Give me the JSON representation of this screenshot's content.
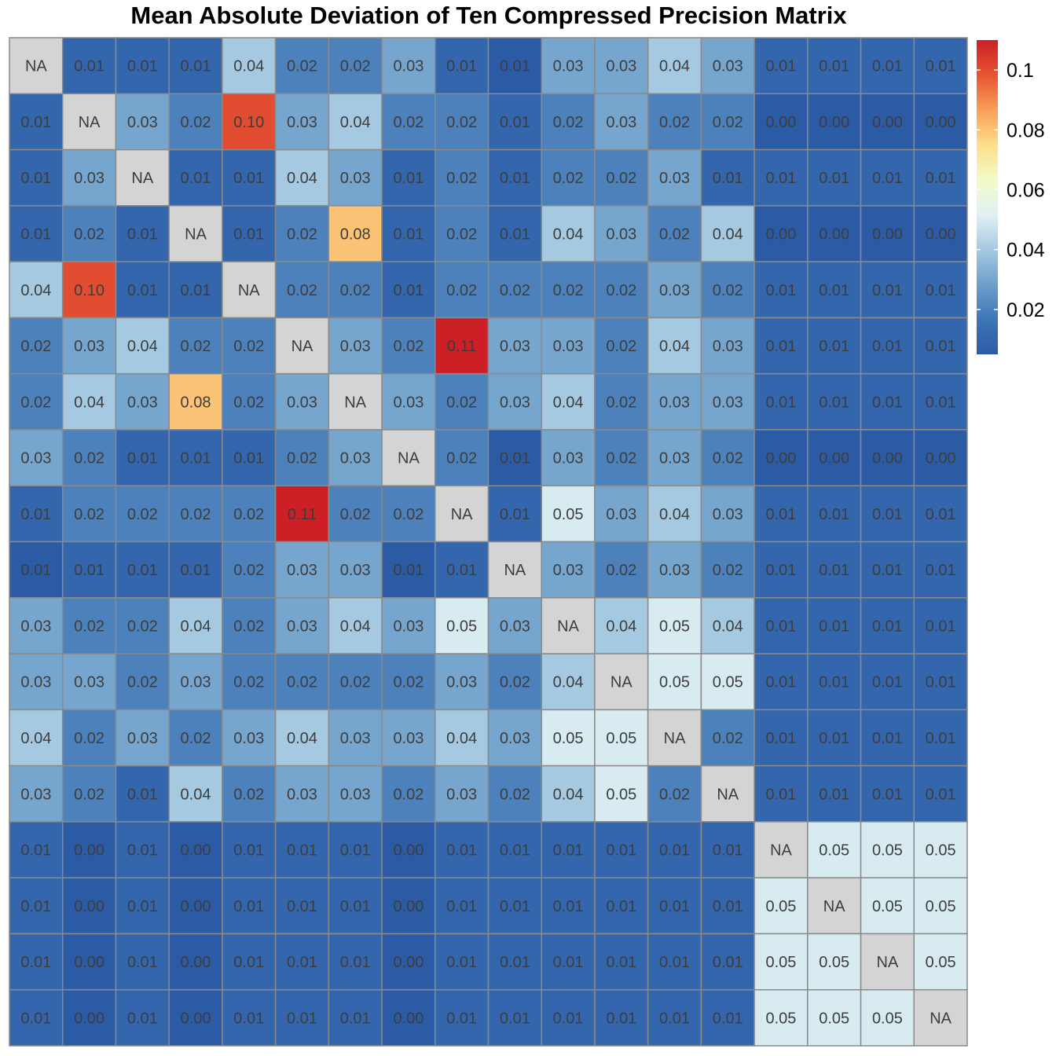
{
  "chart_data": {
    "type": "heatmap",
    "title": "Mean Absolute Deviation of Ten Compressed Precision Matrix",
    "na_label": "NA",
    "color_scale": {
      "min": 0.005,
      "max": 0.11,
      "colors": [
        "#2c5ba6",
        "#3e75b6",
        "#6e9fcb",
        "#a4c9e1",
        "#e1f1f4",
        "#f2fac8",
        "#fdde8a",
        "#f99f58",
        "#e65432",
        "#cc1f26"
      ],
      "na_color": "#d4d4d4",
      "ticks": [
        0.02,
        0.04,
        0.06,
        0.08,
        0.1
      ],
      "tick_labels": [
        "0.02",
        "0.04",
        "0.06",
        "0.08",
        "0.1"
      ]
    },
    "matrix": [
      [
        null,
        0.01,
        0.01,
        0.01,
        0.04,
        0.02,
        0.02,
        0.03,
        0.01,
        0.005,
        0.03,
        0.03,
        0.04,
        0.03,
        0.01,
        0.01,
        0.01,
        0.01
      ],
      [
        0.01,
        null,
        0.03,
        0.02,
        0.1,
        0.03,
        0.04,
        0.02,
        0.02,
        0.01,
        0.02,
        0.03,
        0.02,
        0.02,
        0.0,
        0.0,
        0.0,
        0.0
      ],
      [
        0.01,
        0.03,
        null,
        0.01,
        0.01,
        0.04,
        0.03,
        0.01,
        0.02,
        0.01,
        0.02,
        0.02,
        0.03,
        0.01,
        0.01,
        0.01,
        0.01,
        0.01
      ],
      [
        0.01,
        0.02,
        0.01,
        null,
        0.01,
        0.02,
        0.08,
        0.01,
        0.02,
        0.01,
        0.04,
        0.03,
        0.02,
        0.04,
        0.0,
        0.0,
        0.0,
        0.0
      ],
      [
        0.04,
        0.1,
        0.01,
        0.01,
        null,
        0.02,
        0.02,
        0.01,
        0.02,
        0.02,
        0.02,
        0.02,
        0.03,
        0.02,
        0.01,
        0.01,
        0.01,
        0.01
      ],
      [
        0.02,
        0.03,
        0.04,
        0.02,
        0.02,
        null,
        0.03,
        0.02,
        0.11,
        0.03,
        0.03,
        0.02,
        0.04,
        0.03,
        0.01,
        0.01,
        0.01,
        0.01
      ],
      [
        0.02,
        0.04,
        0.03,
        0.08,
        0.02,
        0.03,
        null,
        0.03,
        0.02,
        0.03,
        0.04,
        0.02,
        0.03,
        0.03,
        0.01,
        0.01,
        0.01,
        0.01
      ],
      [
        0.03,
        0.02,
        0.01,
        0.01,
        0.01,
        0.02,
        0.03,
        null,
        0.02,
        0.005,
        0.03,
        0.02,
        0.03,
        0.02,
        0.0,
        0.0,
        0.0,
        0.0
      ],
      [
        0.01,
        0.02,
        0.02,
        0.02,
        0.02,
        0.11,
        0.02,
        0.02,
        null,
        0.01,
        0.05,
        0.03,
        0.04,
        0.03,
        0.01,
        0.01,
        0.01,
        0.01
      ],
      [
        0.005,
        0.01,
        0.01,
        0.01,
        0.02,
        0.03,
        0.03,
        0.005,
        0.01,
        null,
        0.03,
        0.02,
        0.03,
        0.02,
        0.01,
        0.01,
        0.01,
        0.01
      ],
      [
        0.03,
        0.02,
        0.02,
        0.04,
        0.02,
        0.03,
        0.04,
        0.03,
        0.05,
        0.03,
        null,
        0.04,
        0.05,
        0.04,
        0.01,
        0.01,
        0.01,
        0.01
      ],
      [
        0.03,
        0.03,
        0.02,
        0.03,
        0.02,
        0.02,
        0.02,
        0.02,
        0.03,
        0.02,
        0.04,
        null,
        0.05,
        0.05,
        0.01,
        0.01,
        0.01,
        0.01
      ],
      [
        0.04,
        0.02,
        0.03,
        0.02,
        0.03,
        0.04,
        0.03,
        0.03,
        0.04,
        0.03,
        0.05,
        0.05,
        null,
        0.02,
        0.01,
        0.01,
        0.01,
        0.01
      ],
      [
        0.03,
        0.02,
        0.01,
        0.04,
        0.02,
        0.03,
        0.03,
        0.02,
        0.03,
        0.02,
        0.04,
        0.05,
        0.02,
        null,
        0.01,
        0.01,
        0.01,
        0.01
      ],
      [
        0.01,
        0.0,
        0.01,
        0.0,
        0.01,
        0.01,
        0.01,
        0.0,
        0.01,
        0.01,
        0.01,
        0.01,
        0.01,
        0.01,
        null,
        0.05,
        0.05,
        0.05
      ],
      [
        0.01,
        0.0,
        0.01,
        0.0,
        0.01,
        0.01,
        0.01,
        0.0,
        0.01,
        0.01,
        0.01,
        0.01,
        0.01,
        0.01,
        0.05,
        null,
        0.05,
        0.05
      ],
      [
        0.01,
        0.0,
        0.01,
        0.0,
        0.01,
        0.01,
        0.01,
        0.0,
        0.01,
        0.01,
        0.01,
        0.01,
        0.01,
        0.01,
        0.05,
        0.05,
        null,
        0.05
      ],
      [
        0.01,
        0.0,
        0.01,
        0.0,
        0.01,
        0.01,
        0.01,
        0.0,
        0.01,
        0.01,
        0.01,
        0.01,
        0.01,
        0.01,
        0.05,
        0.05,
        0.05,
        null
      ]
    ]
  }
}
